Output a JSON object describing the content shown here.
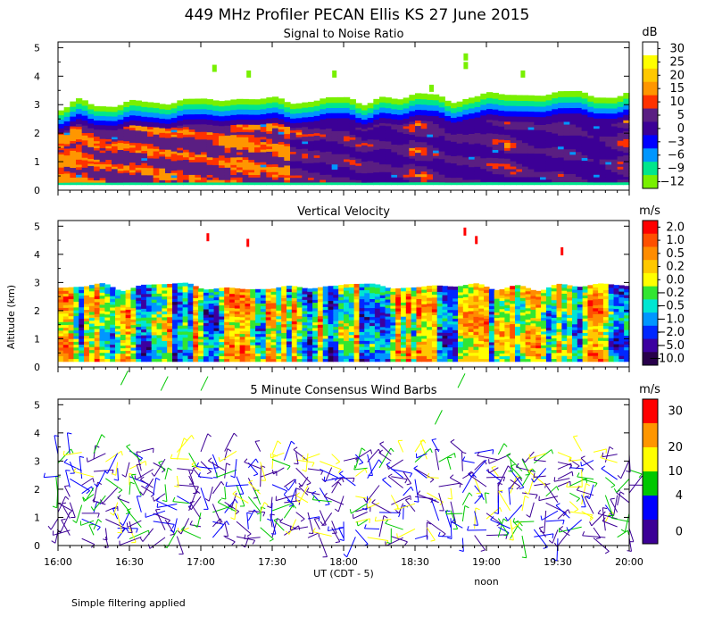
{
  "figure": {
    "title": "449 MHz Profiler PECAN Ellis KS 27 June 2015",
    "ylabel": "Altitude (km)",
    "xlabel": "UT (CDT - 5)",
    "noon_label": "noon",
    "footnote": "Simple filtering applied"
  },
  "chart_data": [
    {
      "type": "heatmap",
      "title": "Signal to Noise Ratio",
      "unit": "dB",
      "x_ticks": [
        "16:00",
        "16:30",
        "17:00",
        "17:30",
        "18:00",
        "18:30",
        "19:00",
        "19:30",
        "20:00"
      ],
      "x_range": [
        "16:00",
        "20:00"
      ],
      "y_ticks": [
        0,
        1,
        2,
        3,
        4,
        5
      ],
      "ylim": [
        0,
        5.2
      ],
      "colorbar": {
        "labels": [
          "30",
          "25",
          "20",
          "15",
          "10",
          "5",
          "0",
          "−3",
          "−6",
          "−9",
          "−12"
        ],
        "colors": [
          "#ffffff",
          "#ffff00",
          "#ffc800",
          "#ff9600",
          "#ff3200",
          "#5a1e82",
          "#3c0096",
          "#0000ff",
          "#0096ff",
          "#00e68c",
          "#78f000"
        ]
      },
      "description_values": {
        "echo_top_km": 3.0,
        "strong_layer_km": [
          0.4,
          2.4
        ],
        "near_surface_band_km": 0.2
      }
    },
    {
      "type": "heatmap",
      "title": "Vertical Velocity",
      "unit": "m/s",
      "x_ticks": [
        "16:00",
        "16:30",
        "17:00",
        "17:30",
        "18:00",
        "18:30",
        "19:00",
        "19:30",
        "20:00"
      ],
      "x_range": [
        "16:00",
        "20:00"
      ],
      "y_ticks": [
        0,
        1,
        2,
        3,
        4,
        5
      ],
      "ylim": [
        0,
        5.2
      ],
      "colorbar": {
        "labels": [
          "2.0",
          "1.0",
          "0.5",
          "0.2",
          "0.0",
          "−0.2",
          "−0.5",
          "−1.0",
          "−2.0",
          "−5.0",
          "−10.0"
        ],
        "colors": [
          "#ff0000",
          "#ff5000",
          "#ff8c00",
          "#ffc800",
          "#ffff00",
          "#32e632",
          "#00e6d2",
          "#0096ff",
          "#0028ff",
          "#3c00a0",
          "#28004b"
        ]
      },
      "description_values": {
        "echo_top_km": 2.9
      }
    },
    {
      "type": "scatter",
      "title": "5 Minute Consensus Wind Barbs",
      "unit": "m/s",
      "x_ticks": [
        "16:00",
        "16:30",
        "17:00",
        "17:30",
        "18:00",
        "18:30",
        "19:00",
        "19:30",
        "20:00"
      ],
      "x_range": [
        "16:00",
        "20:00"
      ],
      "y_ticks": [
        0,
        1,
        2,
        3,
        4,
        5
      ],
      "ylim": [
        0,
        5.2
      ],
      "colorbar": {
        "labels": [
          "30",
          "20",
          "10",
          "4",
          "0"
        ],
        "colors": [
          "#ff0000",
          "#ff9600",
          "#ffff00",
          "#00c800",
          "#0000ff",
          "#3c0096"
        ]
      },
      "barb_interval_minutes": 5,
      "barb_levels_km": [
        0.3,
        0.6,
        0.9,
        1.2,
        1.5,
        1.8,
        2.1,
        2.4,
        2.7,
        3.0,
        3.3
      ]
    }
  ]
}
